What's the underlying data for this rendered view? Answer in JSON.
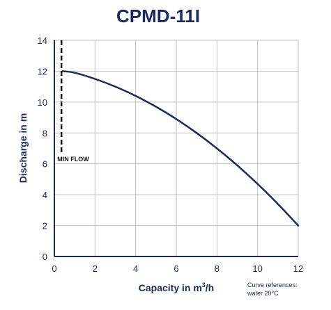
{
  "chart_data": {
    "type": "line",
    "title": "CPMD-11I",
    "xlabel_main": "Capacity in m",
    "xlabel_sup": "3",
    "xlabel_tail": "/h",
    "ylabel": "Discharge in m",
    "xlim": [
      0,
      12
    ],
    "ylim": [
      0,
      14
    ],
    "xticks": [
      0,
      2,
      4,
      6,
      8,
      10,
      12
    ],
    "yticks": [
      0,
      2,
      4,
      6,
      8,
      10,
      12,
      14
    ],
    "grid": true,
    "series": [
      {
        "x": [
          0.4,
          1,
          2,
          3,
          4,
          5,
          6,
          7,
          8,
          9,
          10,
          11,
          12
        ],
        "y": [
          12.0,
          11.9,
          11.5,
          11.0,
          10.4,
          9.7,
          8.9,
          8.0,
          7.0,
          5.9,
          4.7,
          3.4,
          2.0
        ]
      }
    ],
    "min_flow": {
      "x": 0.35,
      "label": "MIN FLOW"
    },
    "note_line1": "Curve references:",
    "note_line2": "water 20°C",
    "colors": {
      "curve": "#1b2a5c",
      "text": "#1b2a5c",
      "grid": "#bfbfbf",
      "axis": "#1b2a5c"
    }
  }
}
